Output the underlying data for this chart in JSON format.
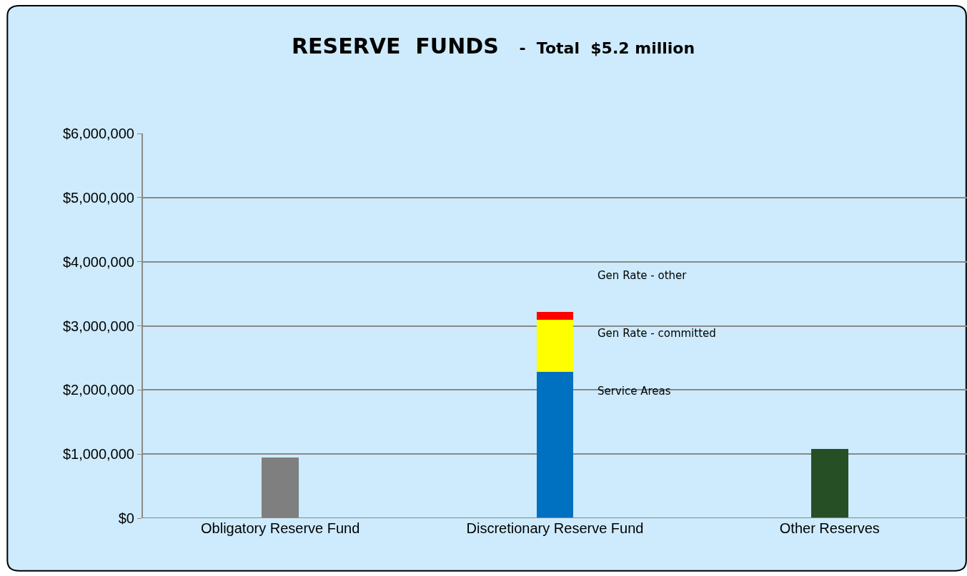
{
  "chart_data": {
    "type": "bar",
    "title": "RESERVE  FUNDS",
    "subtitle": "-  Total  $5.2 million",
    "categories": [
      "Obligatory Reserve Fund",
      "Discretionary Reserve Fund",
      "Other Reserves"
    ],
    "stacked": true,
    "series": [
      {
        "color": "#7f7f7f",
        "values": [
          950000,
          null,
          null
        ]
      },
      {
        "name": "Service Areas",
        "color": "#0070c0",
        "values": [
          null,
          2280000,
          null
        ]
      },
      {
        "name": "Gen Rate - committed",
        "color": "#ffff00",
        "values": [
          null,
          820000,
          null
        ]
      },
      {
        "name": "Gen Rate - other",
        "color": "#ff0000",
        "values": [
          null,
          120000,
          null
        ]
      },
      {
        "color": "#264f26",
        "values": [
          null,
          null,
          1080000
        ]
      }
    ],
    "ylim": [
      0,
      6000000
    ],
    "yticks": [
      {
        "value": 0,
        "label": "$0"
      },
      {
        "value": 1000000,
        "label": "$1,000,000"
      },
      {
        "value": 2000000,
        "label": "$2,000,000"
      },
      {
        "value": 3000000,
        "label": "$3,000,000"
      },
      {
        "value": 4000000,
        "label": "$4,000,000"
      },
      {
        "value": 5000000,
        "label": "$5,000,000"
      },
      {
        "value": 6000000,
        "label": "$6,000,000"
      }
    ],
    "grid": "y"
  }
}
